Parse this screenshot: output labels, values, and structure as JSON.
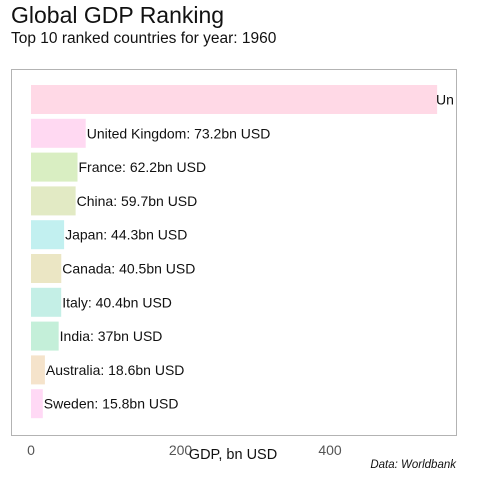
{
  "title": "Global GDP Ranking",
  "subtitle": "Top 10 ranked countries for year: 1960",
  "caption": "Data: Worldbank",
  "chart_data": {
    "type": "bar",
    "orientation": "horizontal",
    "title": "Global GDP Ranking",
    "subtitle": "Top 10 ranked countries for year: 1960",
    "xlabel": "GDP, bn USD",
    "ylabel": "",
    "xlim": [
      0,
      543
    ],
    "xticks": [
      0,
      200,
      400
    ],
    "grid": false,
    "categories": [
      "United States",
      "United Kingdom",
      "France",
      "China",
      "Japan",
      "Canada",
      "Italy",
      "India",
      "Australia",
      "Sweden"
    ],
    "values": [
      543.3,
      73.2,
      62.2,
      59.7,
      44.3,
      40.5,
      40.4,
      37,
      18.6,
      15.8
    ],
    "labels": [
      "Un",
      "United Kingdom: 73.2bn USD",
      "France: 62.2bn USD",
      "China: 59.7bn USD",
      "Japan: 44.3bn USD",
      "Canada: 40.5bn USD",
      "Italy: 40.4bn USD",
      "India: 37bn USD",
      "Australia: 18.6bn USD",
      "Sweden: 15.8bn USD"
    ],
    "colors": [
      "#ffd9e6",
      "#ffd9f2",
      "#d9eec2",
      "#e2eac4",
      "#c2f0f0",
      "#ebe6c4",
      "#c4efe6",
      "#c4efd9",
      "#f5e3cb",
      "#ffd9f5"
    ]
  }
}
